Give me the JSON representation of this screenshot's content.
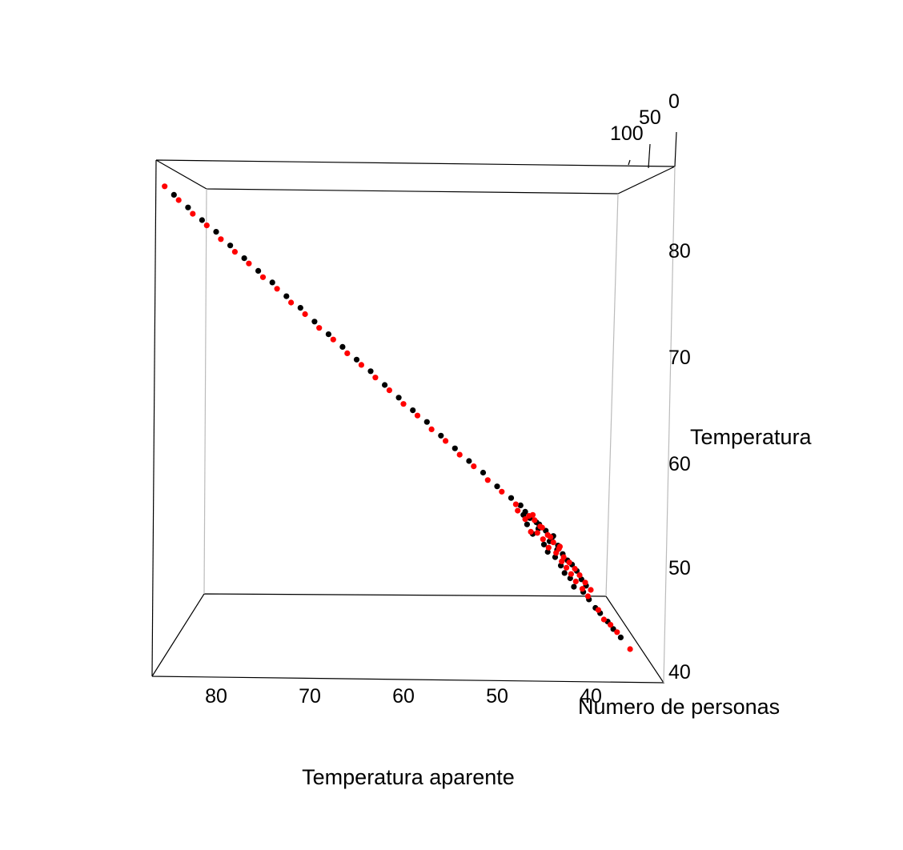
{
  "chart_data": {
    "type": "scatter3d",
    "title": "",
    "axes": {
      "x": {
        "label": "Temperatura aparente",
        "ticks": [
          80,
          70,
          60,
          50,
          40
        ],
        "range": [
          35,
          87
        ]
      },
      "y": {
        "label": "Temperatura",
        "ticks": [
          40,
          50,
          60,
          70,
          80
        ],
        "range": [
          38,
          88
        ]
      },
      "z": {
        "label": "Numero de personas",
        "ticks": [
          0,
          50,
          100
        ],
        "range": [
          0,
          110
        ]
      }
    },
    "point_colors": {
      "group_a": "#000000",
      "group_b": "#ff0000"
    },
    "series": [
      {
        "color": "#000000",
        "points": [
          [
            84.5,
            85.2
          ],
          [
            83.0,
            84.0
          ],
          [
            81.5,
            82.8
          ],
          [
            80.0,
            81.7
          ],
          [
            78.5,
            80.4
          ],
          [
            77.0,
            79.2
          ],
          [
            75.5,
            78.0
          ],
          [
            74.0,
            76.9
          ],
          [
            72.5,
            75.6
          ],
          [
            71.0,
            74.5
          ],
          [
            69.5,
            73.2
          ],
          [
            68.0,
            72.0
          ],
          [
            66.5,
            70.8
          ],
          [
            65.0,
            69.6
          ],
          [
            63.5,
            68.5
          ],
          [
            62.0,
            67.2
          ],
          [
            60.5,
            66.0
          ],
          [
            59.0,
            64.8
          ],
          [
            57.5,
            63.7
          ],
          [
            56.0,
            62.4
          ],
          [
            54.5,
            61.2
          ],
          [
            53.0,
            60.0
          ],
          [
            51.5,
            58.9
          ],
          [
            50.0,
            57.6
          ],
          [
            48.5,
            56.5
          ],
          [
            47.0,
            55.2
          ],
          [
            45.5,
            54.0
          ],
          [
            44.0,
            52.9
          ],
          [
            47.5,
            55.8
          ],
          [
            46.5,
            54.6
          ],
          [
            45.8,
            54.2
          ],
          [
            44.8,
            53.4
          ],
          [
            44.2,
            52.6
          ],
          [
            43.5,
            52.0
          ],
          [
            43.0,
            51.2
          ],
          [
            42.5,
            50.6
          ],
          [
            42.0,
            50.2
          ],
          [
            41.5,
            49.6
          ],
          [
            41.0,
            48.8
          ],
          [
            40.5,
            48.2
          ],
          [
            46.2,
            53.1
          ],
          [
            45.0,
            52.1
          ],
          [
            44.6,
            51.4
          ],
          [
            43.8,
            50.9
          ],
          [
            43.2,
            50.1
          ],
          [
            42.8,
            49.4
          ],
          [
            42.2,
            48.9
          ],
          [
            41.8,
            48.1
          ],
          [
            40.8,
            47.6
          ],
          [
            40.2,
            46.9
          ],
          [
            47.2,
            54.9
          ],
          [
            46.8,
            54.0
          ],
          [
            45.6,
            53.6
          ],
          [
            44.4,
            52.4
          ],
          [
            43.6,
            51.6
          ],
          [
            39.5,
            46.1
          ],
          [
            39.0,
            45.6
          ],
          [
            38.2,
            44.8
          ],
          [
            37.6,
            44.1
          ],
          [
            36.8,
            43.3
          ]
        ]
      },
      {
        "color": "#ff0000",
        "points": [
          [
            85.5,
            86.0
          ],
          [
            84.0,
            84.7
          ],
          [
            82.5,
            83.4
          ],
          [
            81.0,
            82.3
          ],
          [
            79.5,
            81.0
          ],
          [
            78.0,
            79.8
          ],
          [
            76.5,
            78.7
          ],
          [
            75.0,
            77.4
          ],
          [
            73.5,
            76.3
          ],
          [
            72.0,
            75.0
          ],
          [
            70.5,
            73.9
          ],
          [
            69.0,
            72.6
          ],
          [
            67.5,
            71.5
          ],
          [
            66.0,
            70.2
          ],
          [
            64.5,
            69.1
          ],
          [
            63.0,
            67.9
          ],
          [
            61.5,
            66.7
          ],
          [
            60.0,
            65.4
          ],
          [
            58.5,
            64.3
          ],
          [
            57.0,
            63.0
          ],
          [
            55.5,
            61.9
          ],
          [
            54.0,
            60.6
          ],
          [
            52.5,
            59.5
          ],
          [
            51.0,
            58.2
          ],
          [
            49.5,
            57.1
          ],
          [
            48.0,
            55.9
          ],
          [
            46.6,
            54.8
          ],
          [
            45.2,
            53.7
          ],
          [
            47.8,
            55.3
          ],
          [
            46.0,
            54.4
          ],
          [
            45.4,
            53.8
          ],
          [
            44.6,
            53.0
          ],
          [
            44.0,
            52.3
          ],
          [
            43.4,
            51.7
          ],
          [
            42.9,
            50.9
          ],
          [
            42.3,
            50.4
          ],
          [
            41.7,
            49.8
          ],
          [
            41.2,
            49.2
          ],
          [
            40.6,
            48.5
          ],
          [
            40.0,
            47.8
          ],
          [
            46.4,
            53.3
          ],
          [
            45.1,
            52.6
          ],
          [
            44.5,
            51.8
          ],
          [
            43.7,
            51.3
          ],
          [
            43.1,
            50.5
          ],
          [
            42.6,
            49.9
          ],
          [
            42.1,
            49.3
          ],
          [
            41.6,
            48.6
          ],
          [
            40.9,
            47.9
          ],
          [
            40.3,
            47.2
          ],
          [
            47.0,
            54.5
          ],
          [
            46.2,
            54.9
          ],
          [
            45.7,
            53.2
          ],
          [
            44.3,
            52.8
          ],
          [
            43.3,
            51.9
          ],
          [
            39.2,
            45.9
          ],
          [
            38.6,
            45.0
          ],
          [
            37.9,
            44.5
          ],
          [
            37.2,
            43.8
          ],
          [
            35.8,
            42.2
          ]
        ]
      }
    ]
  }
}
